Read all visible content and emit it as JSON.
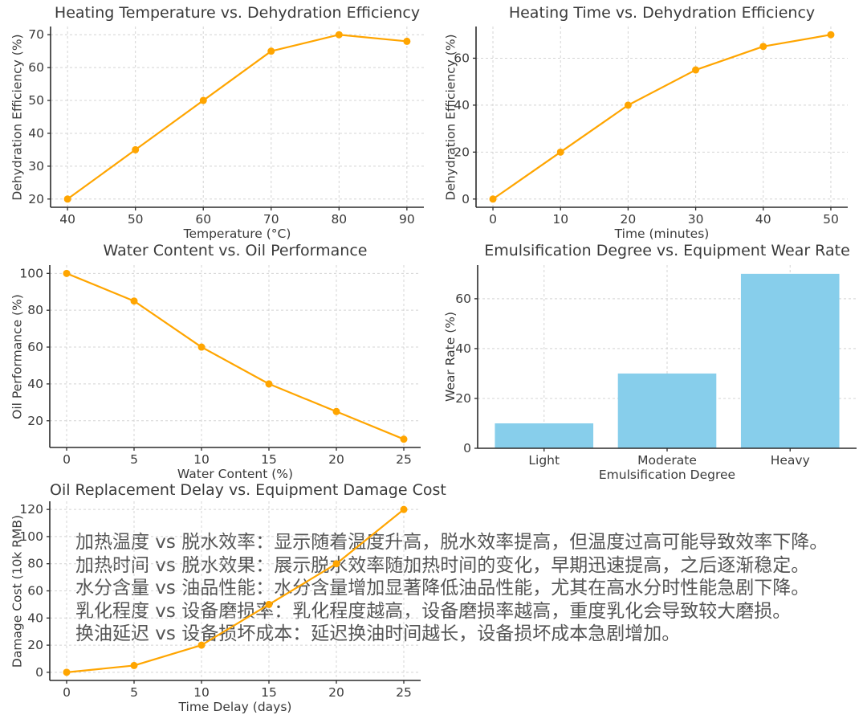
{
  "palette": {
    "line": "#FFA500",
    "bar": "#87CEEB",
    "grid": "#d4d4d4",
    "axis": "#2b2b2b",
    "tick_text": "#3a3a3a",
    "title_text": "#3a3a3a",
    "annotation_text": "#555555",
    "background": "#ffffff"
  },
  "chart_data": [
    {
      "type": "line",
      "title": "Heating Temperature vs. Dehydration Efficiency",
      "xlabel": "Temperature (°C)",
      "ylabel": "Dehydration Efficiency (%)",
      "x": [
        40,
        50,
        60,
        70,
        80,
        90
      ],
      "values": [
        20,
        35,
        50,
        65,
        70,
        68
      ],
      "xticks": [
        40,
        50,
        60,
        70,
        80,
        90
      ],
      "yticks": [
        20,
        30,
        40,
        50,
        60,
        70
      ],
      "xlim": [
        37.5,
        92.5
      ],
      "ylim": [
        17.5,
        72.5
      ],
      "grid": true,
      "legend": "none",
      "line_color": "#FFA500"
    },
    {
      "type": "line",
      "title": "Heating Time vs. Dehydration Efficiency",
      "xlabel": "Time (minutes)",
      "ylabel": "Dehydration Efficiency (%)",
      "x": [
        0,
        10,
        20,
        30,
        40,
        50
      ],
      "values": [
        0,
        20,
        40,
        55,
        65,
        70
      ],
      "xticks": [
        0,
        10,
        20,
        30,
        40,
        50
      ],
      "yticks": [
        0,
        20,
        40,
        60
      ],
      "xlim": [
        -2.5,
        52.5
      ],
      "ylim": [
        -3.5,
        73.5
      ],
      "grid": true,
      "legend": "none",
      "line_color": "#FFA500"
    },
    {
      "type": "line",
      "title": "Water Content vs. Oil Performance",
      "xlabel": "Water Content (%)",
      "ylabel": "Oil Performance (%)",
      "x": [
        0,
        5,
        10,
        15,
        20,
        25
      ],
      "values": [
        100,
        85,
        60,
        40,
        25,
        10
      ],
      "xticks": [
        0,
        5,
        10,
        15,
        20,
        25
      ],
      "yticks": [
        20,
        40,
        60,
        80,
        100
      ],
      "xlim": [
        -1.25,
        26.25
      ],
      "ylim": [
        5.5,
        104.5
      ],
      "grid": true,
      "legend": "none",
      "line_color": "#FFA500"
    },
    {
      "type": "bar",
      "title": "Emulsification Degree vs. Equipment Wear Rate",
      "xlabel": "Emulsification Degree",
      "ylabel": "Wear Rate (%)",
      "categories": [
        "Light",
        "Moderate",
        "Heavy"
      ],
      "values": [
        10,
        30,
        70
      ],
      "yticks": [
        0,
        20,
        40,
        60
      ],
      "ylim": [
        0,
        73.5
      ],
      "grid": true,
      "legend": "none",
      "bar_color": "#87CEEB"
    },
    {
      "type": "line",
      "title": "Oil Replacement Delay vs. Equipment Damage Cost",
      "xlabel": "Time Delay (days)",
      "ylabel": "Damage Cost (10k RMB)",
      "x": [
        0,
        5,
        10,
        15,
        20,
        25
      ],
      "values": [
        0,
        5,
        20,
        50,
        80,
        120
      ],
      "xticks": [
        0,
        5,
        10,
        15,
        20,
        25
      ],
      "yticks": [
        0,
        20,
        40,
        60,
        80,
        100,
        120
      ],
      "xlim": [
        -1.25,
        26.25
      ],
      "ylim": [
        -6,
        126
      ],
      "grid": true,
      "legend": "none",
      "line_color": "#FFA500"
    }
  ],
  "annotations": {
    "lines": [
      "加热温度 vs 脱水效率：显示随着温度升高，脱水效率提高，但温度过高可能导致效率下降。",
      "加热时间 vs 脱水效果：展示脱水效率随加热时间的变化，早期迅速提高，之后逐渐稳定。",
      "水分含量 vs 油品性能：水分含量增加显著降低油品性能，尤其在高水分时性能急剧下降。",
      "乳化程度 vs 设备磨损率：乳化程度越高，设备磨损率越高，重度乳化会导致较大磨损。",
      "换油延迟 vs 设备损坏成本：延迟换油时间越长，设备损坏成本急剧增加。"
    ]
  }
}
